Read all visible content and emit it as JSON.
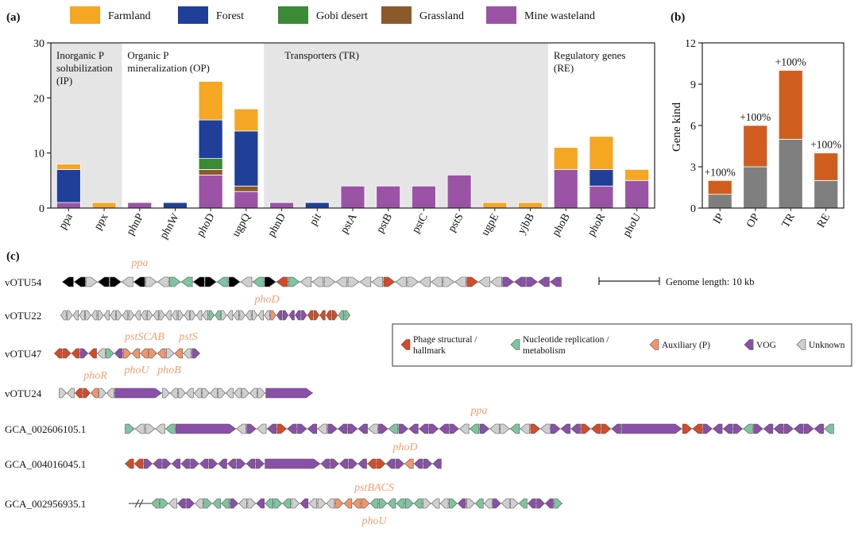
{
  "colors": {
    "farmland": "#f5a623",
    "forest": "#1f3f99",
    "gobi": "#3b8a35",
    "grassland": "#8a5a2b",
    "mine": "#9b53a6",
    "gray": "#7f7f7f",
    "orange": "#cf5e1e",
    "panel_bg": "#e5e5e5",
    "structural": "#d64a27",
    "nucleotide": "#7cc5a0",
    "auxiliary": "#f2956a",
    "vog": "#8a4fa8",
    "unknown": "#cfcfcf",
    "aux_label": "#f0a070"
  },
  "chart_data": [
    {
      "panel": "(a)",
      "type": "bar",
      "stacked": true,
      "ylim": [
        0,
        30
      ],
      "yticks": [
        "0",
        "10",
        "20",
        "30"
      ],
      "categories": [
        "ppa",
        "ppx",
        "phnP",
        "phnW",
        "phoD",
        "ugpQ",
        "phnD",
        "pit",
        "pstA",
        "pstB",
        "pstC",
        "pstS",
        "ugpE",
        "yjbB",
        "phoB",
        "phoR",
        "phoU"
      ],
      "legend": [
        "Farmland",
        "Forest",
        "Gobi desert",
        "Grassland",
        "Mine wasteland"
      ],
      "series": [
        {
          "name": "Mine wasteland",
          "color_key": "mine",
          "values": [
            1,
            0,
            1,
            0,
            6,
            3,
            1,
            0,
            4,
            4,
            4,
            6,
            0,
            0,
            7,
            4,
            5
          ]
        },
        {
          "name": "Grassland",
          "color_key": "grassland",
          "values": [
            0,
            0,
            0,
            0,
            1,
            1,
            0,
            0,
            0,
            0,
            0,
            0,
            0,
            0,
            0,
            0,
            0
          ]
        },
        {
          "name": "Gobi desert",
          "color_key": "gobi",
          "values": [
            0,
            0,
            0,
            0,
            2,
            0,
            0,
            0,
            0,
            0,
            0,
            0,
            0,
            0,
            0,
            0,
            0
          ]
        },
        {
          "name": "Forest",
          "color_key": "forest",
          "values": [
            6,
            0,
            0,
            1,
            7,
            10,
            0,
            1,
            0,
            0,
            0,
            0,
            0,
            0,
            0,
            3,
            0
          ]
        },
        {
          "name": "Farmland",
          "color_key": "farmland",
          "values": [
            1,
            1,
            0,
            0,
            7,
            4,
            0,
            0,
            0,
            0,
            0,
            0,
            1,
            1,
            4,
            6,
            2
          ]
        }
      ],
      "groups": [
        {
          "lines": [
            "Inorganic P",
            "solubilization",
            "(IP)"
          ],
          "start": 0,
          "end": 1,
          "shaded": true
        },
        {
          "lines": [
            "Organic P",
            "mineralization (OP)"
          ],
          "start": 2,
          "end": 5,
          "shaded": false
        },
        {
          "lines": [
            "Transporters (TR)"
          ],
          "start": 6,
          "end": 13,
          "shaded": true
        },
        {
          "lines": [
            "Regulatory genes",
            "(RE)"
          ],
          "start": 14,
          "end": 16,
          "shaded": false
        }
      ]
    },
    {
      "panel": "(b)",
      "type": "bar",
      "stacked": true,
      "ylabel": "Gene kind",
      "ylim": [
        0,
        12
      ],
      "yticks": [
        "0",
        "3",
        "6",
        "9",
        "12"
      ],
      "categories": [
        "IP",
        "OP",
        "TR",
        "RE"
      ],
      "series": [
        {
          "name": "base",
          "color_key": "gray",
          "values": [
            1,
            3,
            5,
            2
          ]
        },
        {
          "name": "added",
          "color_key": "orange",
          "values": [
            1,
            3,
            5,
            2
          ]
        }
      ],
      "annotations": [
        "+100%",
        "+100%",
        "+100%",
        "+100%"
      ]
    }
  ],
  "panel_c": {
    "label": "(c)",
    "scale_label": "Genome length: 10 kb",
    "legend": [
      {
        "label": "Phage structural /",
        "label2": "hallmark",
        "color_key": "structural"
      },
      {
        "label": "Nucleotide replication /",
        "label2": "metabolism",
        "color_key": "nucleotide"
      },
      {
        "label": "Auxiliary (P)",
        "label2": "",
        "color_key": "auxiliary"
      },
      {
        "label": "VOG",
        "label2": "",
        "color_key": "vog"
      },
      {
        "label": "Unknown",
        "label2": "",
        "color_key": "unknown"
      }
    ],
    "genomes": [
      {
        "name": "vOTU54",
        "genes": "rrUrrUPUUNNrPNrUNrSNUUUUUUUSUUUUUUSUUVVVVV",
        "aux_labels": [
          {
            "text": "ppa"
          }
        ]
      },
      {
        "name": "vOTU22",
        "genes": "UUUUUUUUUUUUUUUUUUUUUUUUNNUUUUUUUUAVVVVVSSSSSNN",
        "aux_labels": [
          {
            "text": "phoD"
          }
        ]
      },
      {
        "name": "vOTU47",
        "genes": "SSSVSUNVAAAAAUAUV",
        "aux_labels": [
          {
            "text": "pstSCAB"
          },
          {
            "text": "pstS"
          },
          {
            "text": "phoU"
          },
          {
            "text": "phoB"
          }
        ]
      },
      {
        "name": "vOTU24",
        "genes": "UUSSAUULUUUUUUUUUUUUUL",
        "aux_labels": [
          {
            "text": "phoR"
          }
        ]
      },
      {
        "name": "GCA_002606105.1",
        "genes": "NUUUNLUVUVSVVVUVVVVUVNVVVVVVUNVUUNUSUVVVSSSVLSSVVVVNVVVVVVVN",
        "aux_labels": [
          {
            "text": "ppa"
          }
        ]
      },
      {
        "name": "GCA_004016045.1",
        "genes": "SSVVVVVVVVVVVVVLVVVVVSSVVAVVV",
        "aux_labels": [
          {
            "text": "phoD"
          }
        ]
      },
      {
        "name": "GCA_002956935.1",
        "genes": "NNUVVUNNNVUUVNNNUVUUUAAAANNNNNNUUUNVUNUVUUNVVVN",
        "aux_labels": [
          {
            "text": "pstBACS"
          },
          {
            "text": "phoU"
          }
        ]
      }
    ]
  }
}
